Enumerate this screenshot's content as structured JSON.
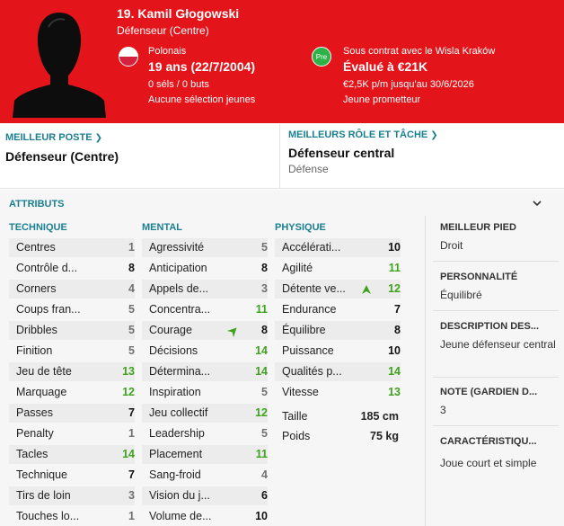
{
  "header": {
    "title": "19. Kamil Głogowski",
    "subtitle": "Défenseur (Centre)",
    "nationality": {
      "name": "Polonais",
      "age": "19 ans (22/7/2004)",
      "caps": "0 séls / 0 buts",
      "youth": "Aucune sélection jeunes"
    },
    "contract": {
      "badge": "Pre",
      "club": "Sous contrat avec le Wisla Kraków",
      "value": "Évalué à €21K",
      "wage": "€2,5K p/m jusqu'au 30/6/2026",
      "status": "Jeune prometteur"
    },
    "colors": {
      "background": "#e3151b",
      "badge": "#2db248"
    }
  },
  "best_position": {
    "label": "MEILLEUR POSTE",
    "value": "Défenseur (Centre)"
  },
  "best_role": {
    "label": "MEILLEURS RÔLE ET TÂCHE",
    "value": "Défenseur central",
    "duty": "Défense"
  },
  "attributes": {
    "title": "ATTRIBUTS",
    "technical": {
      "heading": "TECHNIQUE",
      "items": [
        {
          "label": "Centres",
          "value": "1"
        },
        {
          "label": "Contrôle d...",
          "value": "8"
        },
        {
          "label": "Corners",
          "value": "4"
        },
        {
          "label": "Coups fran...",
          "value": "5"
        },
        {
          "label": "Dribbles",
          "value": "5"
        },
        {
          "label": "Finition",
          "value": "5"
        },
        {
          "label": "Jeu de tête",
          "value": "13"
        },
        {
          "label": "Marquage",
          "value": "12"
        },
        {
          "label": "Passes",
          "value": "7"
        },
        {
          "label": "Penalty",
          "value": "1"
        },
        {
          "label": "Tacles",
          "value": "14"
        },
        {
          "label": "Technique",
          "value": "7"
        },
        {
          "label": "Tirs de loin",
          "value": "3"
        },
        {
          "label": "Touches lo...",
          "value": "1"
        }
      ]
    },
    "mental": {
      "heading": "MENTAL",
      "items": [
        {
          "label": "Agressivité",
          "value": "5"
        },
        {
          "label": "Anticipation",
          "value": "8"
        },
        {
          "label": "Appels de...",
          "value": "3"
        },
        {
          "label": "Concentra...",
          "value": "11"
        },
        {
          "label": "Courage",
          "value": "8"
        },
        {
          "label": "Décisions",
          "value": "14"
        },
        {
          "label": "Détermina...",
          "value": "14"
        },
        {
          "label": "Inspiration",
          "value": "5"
        },
        {
          "label": "Jeu collectif",
          "value": "12"
        },
        {
          "label": "Leadership",
          "value": "5"
        },
        {
          "label": "Placement",
          "value": "11"
        },
        {
          "label": "Sang-froid",
          "value": "4"
        },
        {
          "label": "Vision du j...",
          "value": "6"
        },
        {
          "label": "Volume de...",
          "value": "10"
        }
      ]
    },
    "physical": {
      "heading": "PHYSIQUE",
      "items": [
        {
          "label": "Accélérati...",
          "value": "10"
        },
        {
          "label": "Agilité",
          "value": "11"
        },
        {
          "label": "Détente ve...",
          "value": "12"
        },
        {
          "label": "Endurance",
          "value": "7"
        },
        {
          "label": "Équilibre",
          "value": "8"
        },
        {
          "label": "Puissance",
          "value": "10"
        },
        {
          "label": "Qualités p...",
          "value": "14"
        },
        {
          "label": "Vitesse",
          "value": "13"
        }
      ],
      "height_label": "Taille",
      "height_value": "185 cm",
      "weight_label": "Poids",
      "weight_value": "75 kg"
    }
  },
  "side": {
    "foot_label": "MEILLEUR PIED",
    "foot_value": "Droit",
    "personality_label": "PERSONNALITÉ",
    "personality_value": "Équilibré",
    "description_label": "DESCRIPTION DES...",
    "description_value": "Jeune défenseur central",
    "note_label": "NOTE (GARDIEN D...",
    "note_value": "3",
    "traits_label": "CARACTÉRISTIQU...",
    "traits_value": "Joue court et simple"
  },
  "value_colors": {
    "low": "#707070",
    "mid": "#111111",
    "high": "#3ea21d"
  }
}
